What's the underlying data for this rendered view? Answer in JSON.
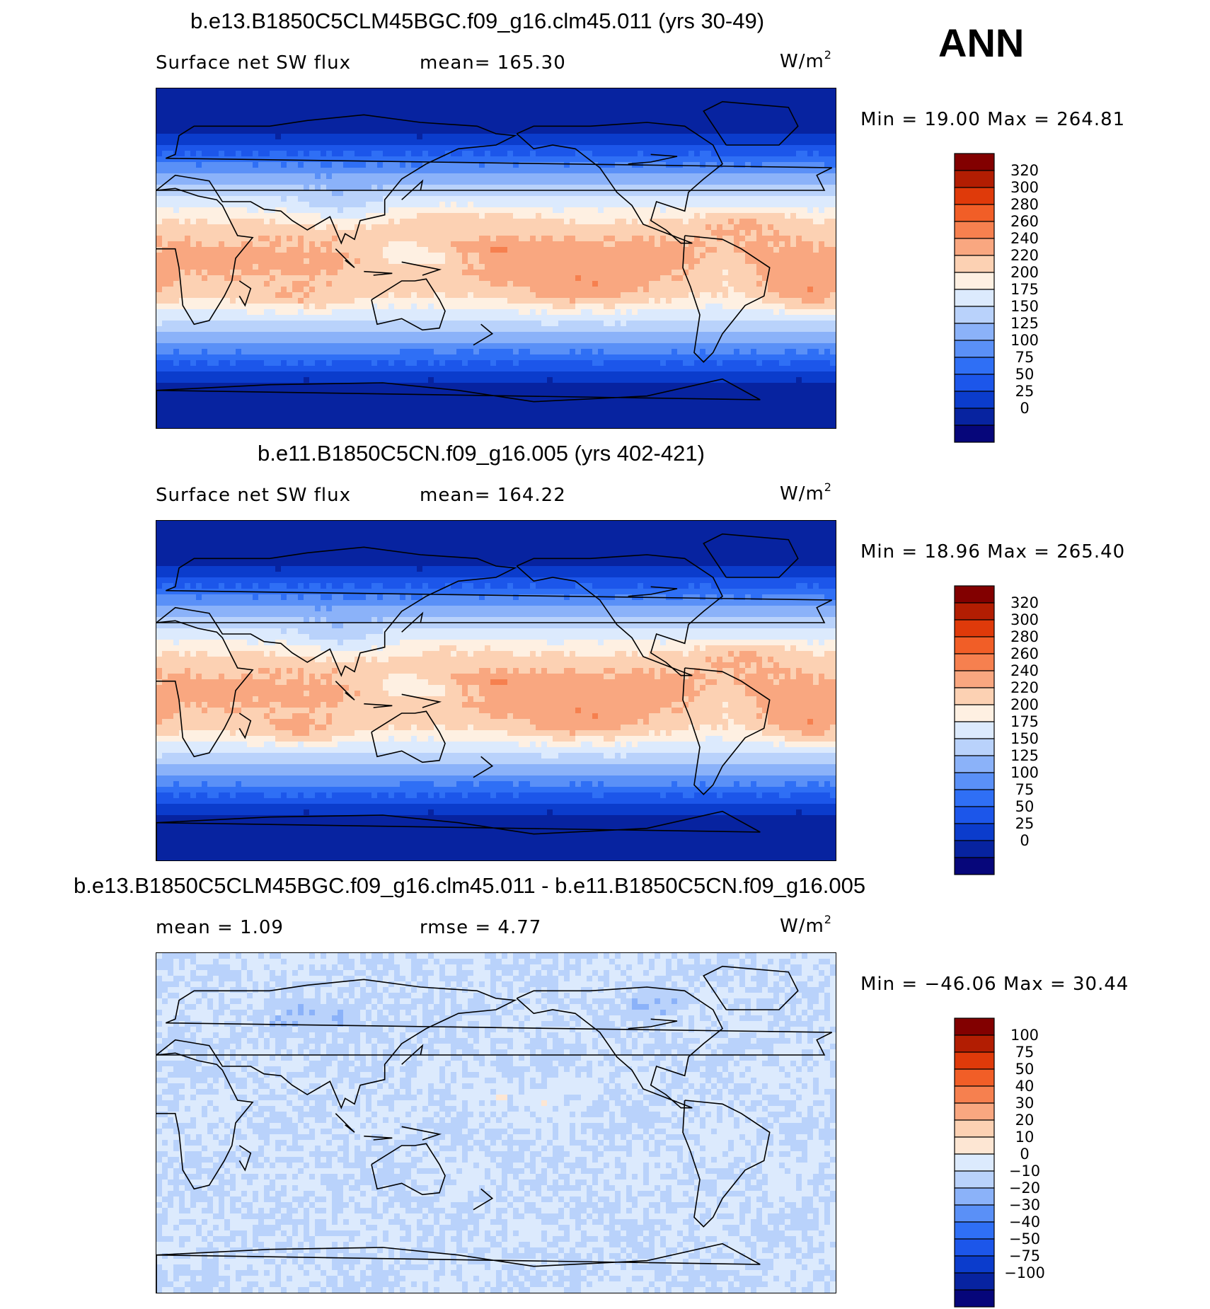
{
  "season": "ANN",
  "palettes": {
    "field": [
      "#06067a",
      "#0723a0",
      "#0b3ccc",
      "#1c56ea",
      "#2f6ff5",
      "#5a90f7",
      "#8bb2f9",
      "#b9d2fb",
      "#dceafd",
      "#fef0e2",
      "#fcd1b3",
      "#f9a780",
      "#f6804f",
      "#f15e27",
      "#df3a0a",
      "#b21d02",
      "#820000"
    ],
    "diff": [
      "#06067a",
      "#0723a0",
      "#0b3ccc",
      "#1c56ea",
      "#2f6ff5",
      "#5a90f7",
      "#8bb2f9",
      "#b9d2fb",
      "#dceafd",
      "#fde6d3",
      "#fcd1b3",
      "#f9a780",
      "#f6804f",
      "#f15e27",
      "#df3a0a",
      "#b21d02",
      "#820000"
    ]
  },
  "panels": [
    {
      "title": "b.e13.B1850C5CLM45BGC.f09_g16.clm45.011 (yrs 30-49)",
      "left_label": "Surface net SW flux",
      "center_label": "mean=  165.30",
      "units_base": "W/m",
      "units_exp": "2",
      "minmax": "Min  =    19.00  Max  =  264.81"
    },
    {
      "title": "b.e11.B1850C5CN.f09_g16.005 (yrs 402-421)",
      "left_label": "Surface net SW flux",
      "center_label": "mean=  164.22",
      "units_base": "W/m",
      "units_exp": "2",
      "minmax": "Min  =    18.96  Max  =  265.40"
    },
    {
      "title": "b.e13.B1850C5CLM45BGC.f09_g16.clm45.011 - b.e11.B1850C5CN.f09_g16.005",
      "left_label": "mean  =     1.09",
      "center_label": "rmse  =     4.77",
      "units_base": "W/m",
      "units_exp": "2",
      "minmax": "Min  = −46.06  Max  =    30.44"
    }
  ],
  "chart_data": [
    {
      "type": "heatmap",
      "title": "b.e13.B1850C5CLM45BGC.f09_g16.clm45.011 (yrs 30-49)",
      "variable": "Surface net SW flux",
      "units": "W/m2",
      "mean": 165.3,
      "min": 19.0,
      "max": 264.81,
      "x_range": [
        0,
        360
      ],
      "y_range": [
        -90,
        90
      ],
      "colorbar_levels": [
        "320",
        "300",
        "280",
        "260",
        "240",
        "220",
        "200",
        "175",
        "150",
        "125",
        "100",
        "75",
        "50",
        "25",
        "0"
      ]
    },
    {
      "type": "heatmap",
      "title": "b.e11.B1850C5CN.f09_g16.005 (yrs 402-421)",
      "variable": "Surface net SW flux",
      "units": "W/m2",
      "mean": 164.22,
      "min": 18.96,
      "max": 265.4,
      "x_range": [
        0,
        360
      ],
      "y_range": [
        -90,
        90
      ],
      "colorbar_levels": [
        "320",
        "300",
        "280",
        "260",
        "240",
        "220",
        "200",
        "175",
        "150",
        "125",
        "100",
        "75",
        "50",
        "25",
        "0"
      ]
    },
    {
      "type": "heatmap",
      "title": "b.e13.B1850C5CLM45BGC.f09_g16.clm45.011 - b.e11.B1850C5CN.f09_g16.005",
      "units": "W/m2",
      "mean": 1.09,
      "rmse": 4.77,
      "min": -46.06,
      "max": 30.44,
      "x_range": [
        0,
        360
      ],
      "y_range": [
        -90,
        90
      ],
      "colorbar_levels": [
        "100",
        "75",
        "50",
        "40",
        "30",
        "20",
        "10",
        "0",
        "−10",
        "−20",
        "−30",
        "−40",
        "−50",
        "−75",
        "−100"
      ]
    }
  ]
}
